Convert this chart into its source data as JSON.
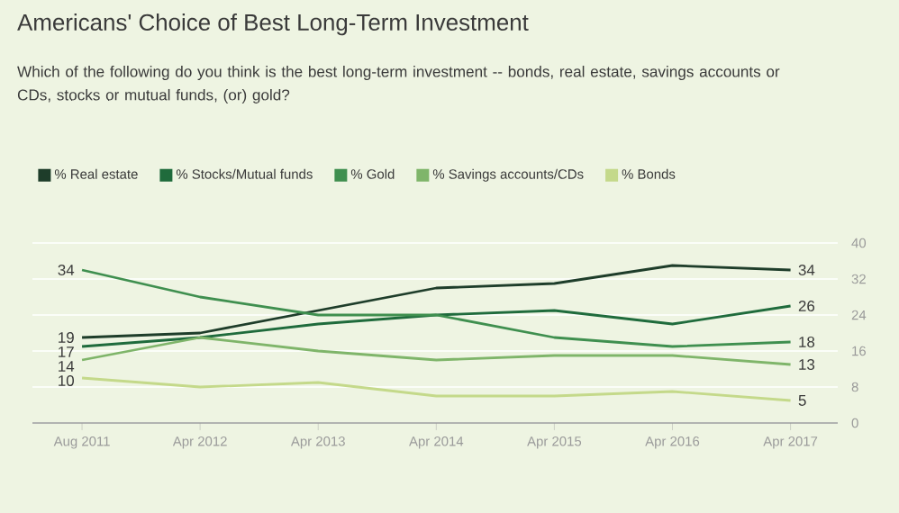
{
  "chart_data": {
    "type": "line",
    "title": "Americans' Choice of Best Long-Term Investment",
    "subtitle": "Which of the following do you think is the best long-term investment -- bonds, real estate, savings accounts or CDs, stocks or mutual funds, (or) gold?",
    "categories": [
      "Aug 2011",
      "Apr 2012",
      "Apr 2013",
      "Apr 2014",
      "Apr 2015",
      "Apr 2016",
      "Apr 2017"
    ],
    "series": [
      {
        "name": "% Real estate",
        "color": "#1e3d2a",
        "values": [
          19,
          20,
          25,
          30,
          31,
          35,
          34
        ],
        "value_labels": [
          "19",
          null,
          null,
          null,
          null,
          null,
          "34"
        ]
      },
      {
        "name": "% Stocks/Mutual funds",
        "color": "#1f6b3c",
        "values": [
          17,
          19,
          22,
          24,
          25,
          22,
          26
        ],
        "value_labels": [
          "17",
          null,
          null,
          null,
          null,
          null,
          "26"
        ]
      },
      {
        "name": "% Gold",
        "color": "#3f8f4f",
        "values": [
          34,
          28,
          24,
          24,
          19,
          17,
          18
        ],
        "value_labels": [
          "34",
          null,
          null,
          null,
          null,
          null,
          "18"
        ]
      },
      {
        "name": "% Savings accounts/CDs",
        "color": "#7fb56a",
        "values": [
          14,
          19,
          16,
          14,
          15,
          15,
          13
        ],
        "value_labels": [
          "14",
          null,
          null,
          null,
          null,
          null,
          "13"
        ]
      },
      {
        "name": "% Bonds",
        "color": "#c4d98a",
        "values": [
          10,
          8,
          9,
          6,
          6,
          7,
          5
        ],
        "value_labels": [
          "10",
          null,
          null,
          null,
          null,
          null,
          "5"
        ]
      }
    ],
    "ylim": [
      0,
      40
    ],
    "yticks": [
      0,
      8,
      16,
      24,
      32,
      40
    ],
    "grid": "y",
    "legend": "top",
    "marker": "none",
    "line_style": "solid"
  }
}
